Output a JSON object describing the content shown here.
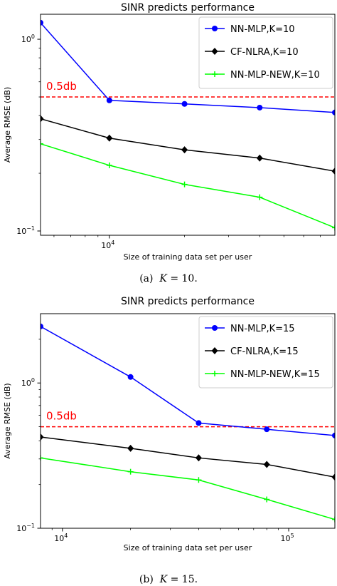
{
  "chart_data": [
    {
      "type": "line",
      "title": "SINR predicts performance",
      "xlabel": "Size of training data set per user",
      "ylabel": "Average RMSE (dB)",
      "xscale": "log",
      "yscale": "log",
      "xlim": [
        5300,
        80000
      ],
      "ylim": [
        0.095,
        1.35
      ],
      "x_ticks": [
        {
          "value": 10000,
          "label": "10",
          "exp": "4"
        }
      ],
      "y_ticks": [
        {
          "value": 1,
          "label": "10",
          "exp": "0"
        },
        {
          "value": 0.1,
          "label": "10",
          "exp": "−1"
        }
      ],
      "legend_position": "top-right",
      "series": [
        {
          "name": "NN-MLP,K=10",
          "color": "#0000ff",
          "marker": "circle",
          "x": [
            5300,
            10000,
            20000,
            40000,
            80000
          ],
          "y": [
            1.22,
            0.48,
            0.46,
            0.44,
            0.415
          ]
        },
        {
          "name": "CF-NLRA,K=10",
          "color": "#000000",
          "marker": "diamond",
          "x": [
            5300,
            10000,
            20000,
            40000,
            80000
          ],
          "y": [
            0.385,
            0.305,
            0.265,
            0.24,
            0.205
          ]
        },
        {
          "name": "NN-MLP-NEW,K=10",
          "color": "#00ff00",
          "marker": "plus",
          "x": [
            5300,
            10000,
            20000,
            40000,
            80000
          ],
          "y": [
            0.285,
            0.22,
            0.175,
            0.15,
            0.104
          ]
        }
      ],
      "reference_line": {
        "y": 0.5,
        "label": "0.5db",
        "color": "#ff0000",
        "style": "dashed"
      }
    },
    {
      "type": "line",
      "title": "SINR predicts performance",
      "xlabel": "Size of training data set per user",
      "ylabel": "Average RMSE (dB)",
      "xscale": "log",
      "yscale": "log",
      "xlim": [
        8000,
        160000
      ],
      "ylim": [
        0.1,
        3.0
      ],
      "x_ticks": [
        {
          "value": 10000,
          "label": "10",
          "exp": "4"
        },
        {
          "value": 100000,
          "label": "10",
          "exp": "5"
        }
      ],
      "y_ticks": [
        {
          "value": 1,
          "label": "10",
          "exp": "0"
        },
        {
          "value": 0.1,
          "label": "10",
          "exp": "−1"
        }
      ],
      "legend_position": "top-right",
      "series": [
        {
          "name": "NN-MLP,K=15",
          "color": "#0000ff",
          "marker": "circle",
          "x": [
            8000,
            20000,
            40000,
            80000,
            160000
          ],
          "y": [
            2.45,
            1.1,
            0.53,
            0.48,
            0.435
          ]
        },
        {
          "name": "CF-NLRA,K=15",
          "color": "#000000",
          "marker": "diamond",
          "x": [
            8000,
            20000,
            40000,
            80000,
            160000
          ],
          "y": [
            0.425,
            0.355,
            0.305,
            0.275,
            0.225
          ]
        },
        {
          "name": "NN-MLP-NEW,K=15",
          "color": "#00ff00",
          "marker": "plus",
          "x": [
            8000,
            20000,
            40000,
            80000,
            160000
          ],
          "y": [
            0.305,
            0.245,
            0.215,
            0.158,
            0.115
          ]
        }
      ],
      "reference_line": {
        "y": 0.5,
        "label": "0.5db",
        "color": "#ff0000",
        "style": "dashed"
      }
    }
  ],
  "captions": [
    {
      "prefix": "(a)",
      "math": "K",
      "suffix": "= 10."
    },
    {
      "prefix": "(b)",
      "math": "K",
      "suffix": "= 15."
    }
  ]
}
